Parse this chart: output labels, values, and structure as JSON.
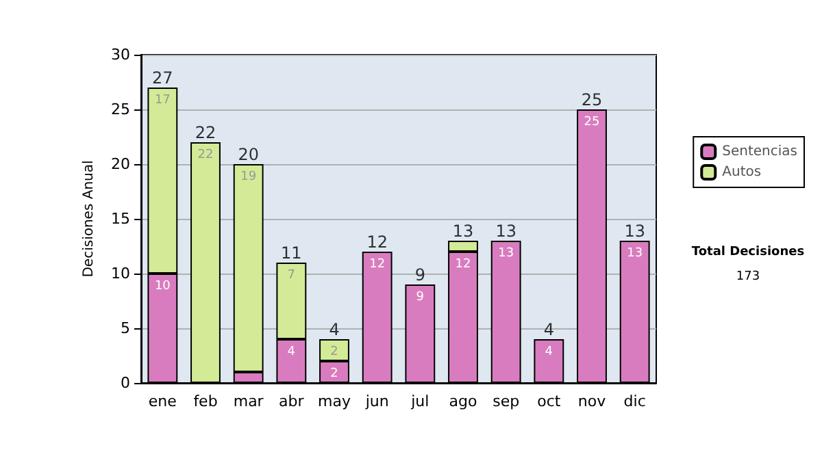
{
  "chart_data": {
    "type": "bar",
    "stacked": true,
    "ylabel": "Decisiones Anual",
    "categories": [
      "ene",
      "feb",
      "mar",
      "abr",
      "may",
      "jun",
      "jul",
      "ago",
      "sep",
      "oct",
      "nov",
      "dic"
    ],
    "series": [
      {
        "name": "Sentencias",
        "color": "#d97cbf",
        "values": [
          10,
          0,
          1,
          4,
          2,
          12,
          9,
          12,
          13,
          4,
          25,
          13
        ],
        "value_labels": [
          "10",
          null,
          null,
          "4",
          "2",
          "12",
          "9",
          "12",
          "13",
          "4",
          "25",
          "13"
        ]
      },
      {
        "name": "Autos",
        "color": "#d3eb96",
        "values": [
          17,
          22,
          19,
          7,
          2,
          0,
          0,
          1,
          0,
          0,
          0,
          0
        ],
        "value_labels": [
          "17",
          "22",
          "19",
          "7",
          "2",
          null,
          null,
          null,
          null,
          null,
          null,
          null
        ]
      }
    ],
    "totals": [
      "27",
      "22",
      "20",
      "11",
      "4",
      "12",
      "9",
      "13",
      "13",
      "4",
      "25",
      "13"
    ],
    "ylim": [
      0,
      30
    ],
    "yticks": [
      0,
      5,
      10,
      15,
      20,
      25,
      30
    ],
    "grid": "y",
    "legend": "right",
    "annotations": [
      "Total Decisiones",
      "173"
    ]
  }
}
